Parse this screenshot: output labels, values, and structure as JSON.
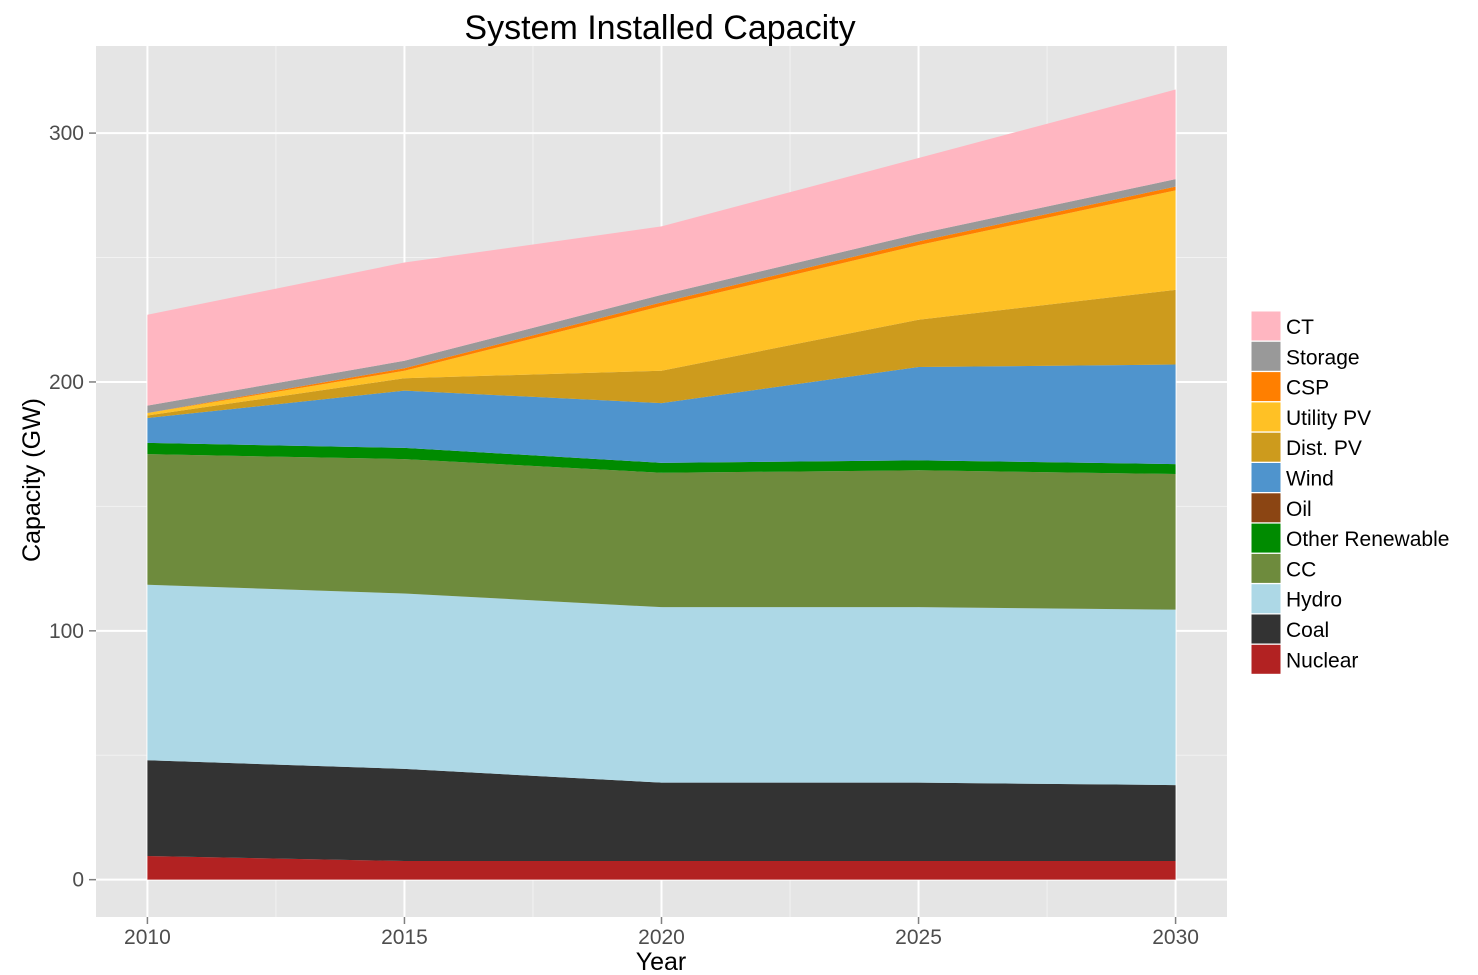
{
  "chart_data": {
    "type": "area",
    "stacked": true,
    "title": "System Installed Capacity",
    "xlabel": "Year",
    "ylabel": "Capacity (GW)",
    "x": [
      2010,
      2015,
      2020,
      2025,
      2030
    ],
    "xticks": [
      2010,
      2015,
      2020,
      2025,
      2030
    ],
    "xlim": [
      2009,
      2031
    ],
    "yticks": [
      0,
      100,
      200,
      300
    ],
    "ylim": [
      -15,
      335
    ],
    "grid": true,
    "legend_position": "right",
    "series": [
      {
        "name": "Nuclear",
        "color": "#B22222",
        "values": [
          9.5,
          7.5,
          7.5,
          7.5,
          7.5
        ]
      },
      {
        "name": "Coal",
        "color": "#333333",
        "values": [
          38.5,
          37,
          31.5,
          31.5,
          30.5
        ]
      },
      {
        "name": "Hydro",
        "color": "#ADD8E6",
        "values": [
          70.5,
          70.5,
          70.5,
          70.5,
          70.5
        ]
      },
      {
        "name": "CC",
        "color": "#6E8B3D",
        "values": [
          52.5,
          54,
          54,
          55,
          54.5
        ]
      },
      {
        "name": "Other Renewable",
        "color": "#008B00",
        "values": [
          4.5,
          4.5,
          4,
          4,
          4
        ]
      },
      {
        "name": "Oil",
        "color": "#8B4513",
        "values": [
          0,
          0,
          0,
          0,
          0
        ]
      },
      {
        "name": "Wind",
        "color": "#4F94CD",
        "values": [
          10,
          23,
          24,
          37.5,
          40
        ]
      },
      {
        "name": "Dist. PV",
        "color": "#CD9B1D",
        "values": [
          1,
          5,
          13,
          19,
          30
        ]
      },
      {
        "name": "Utility PV",
        "color": "#FFC125",
        "values": [
          1,
          3,
          26,
          30,
          40
        ]
      },
      {
        "name": "CSP",
        "color": "#FF7F00",
        "values": [
          0,
          1,
          1.5,
          1.5,
          1.5
        ]
      },
      {
        "name": "Storage",
        "color": "#999999",
        "values": [
          3,
          3,
          3,
          3,
          3
        ]
      },
      {
        "name": "CT",
        "color": "#FFB6C1",
        "values": [
          36.5,
          39.5,
          27.5,
          30.5,
          36
        ]
      }
    ],
    "legend_order": [
      "CT",
      "Storage",
      "CSP",
      "Utility PV",
      "Dist. PV",
      "Wind",
      "Oil",
      "Other Renewable",
      "CC",
      "Hydro",
      "Coal",
      "Nuclear"
    ]
  }
}
